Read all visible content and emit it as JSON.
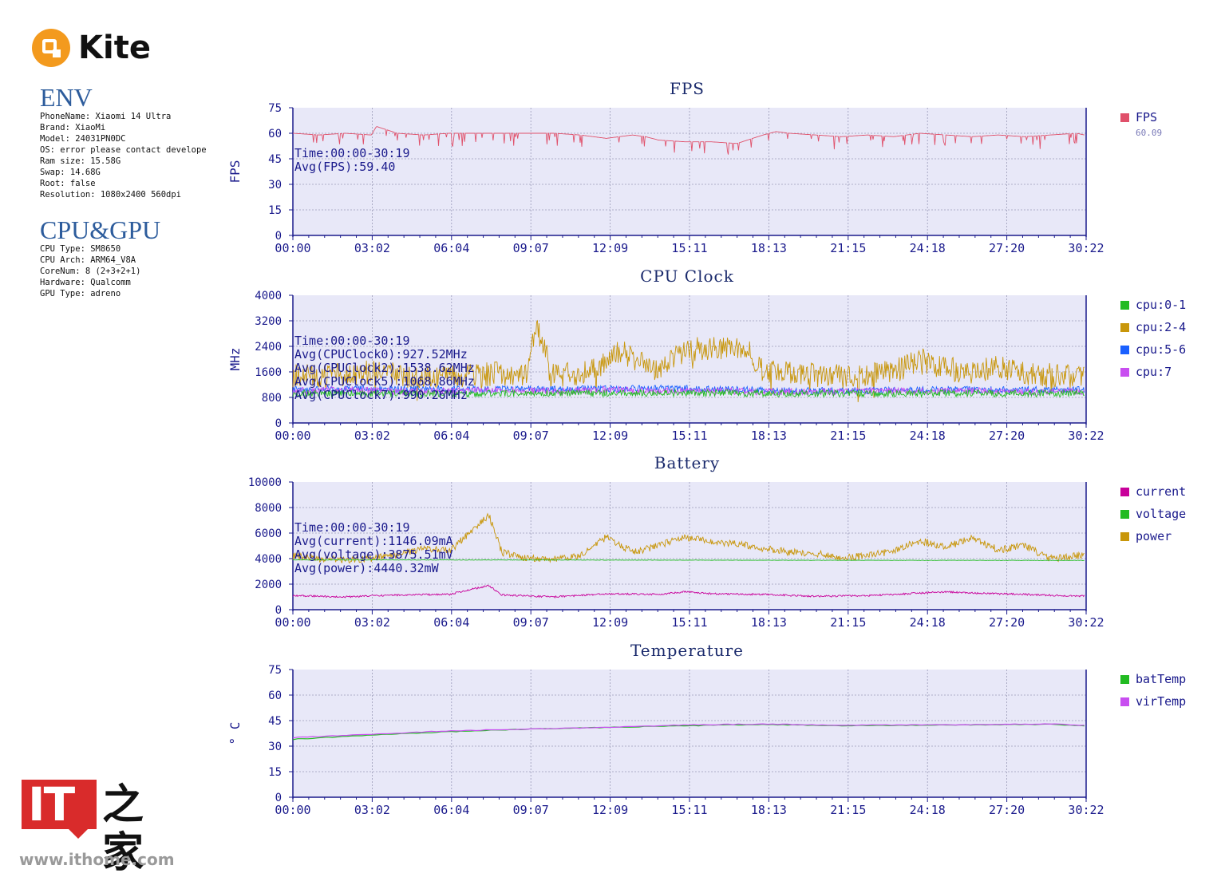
{
  "brand": {
    "name": "Kite",
    "logo_icon": "kite-logo-icon"
  },
  "env": {
    "title": "ENV",
    "lines": [
      "PhoneName: Xiaomi 14 Ultra",
      "Brand: XiaoMi",
      "Model: 24031PN0DC",
      "OS: error please contact develope",
      "Ram size: 15.58G",
      "Swap: 14.68G",
      "Root: false",
      "Resolution: 1080x2400 560dpi"
    ]
  },
  "cpu_gpu": {
    "title": "CPU&GPU",
    "lines": [
      "CPU Type: SM8650",
      "CPU Arch: ARM64_V8A",
      "CoreNum: 8 (2+3+2+1)",
      "Hardware: Qualcomm",
      "GPU Type: adreno"
    ]
  },
  "watermark": {
    "logo": "IT",
    "name": "之家",
    "url": "www.ithome.com"
  },
  "colors": {
    "plot_bg": "#e8e8f8",
    "axis": "#1a1a8c",
    "title": "#1a2a6c",
    "fps": "#e0506a",
    "cpu0": "#22bb22",
    "cpu2": "#c8960a",
    "cpu5": "#1a60ff",
    "cpu7": "#c84ef0",
    "current": "#c8009a",
    "voltage": "#22bb22",
    "power": "#c8960a",
    "batTemp": "#22bb22",
    "virTemp": "#c84ef0"
  },
  "chart_data": [
    {
      "type": "line",
      "title": "FPS",
      "ylabel": "FPS",
      "ylim": [
        0,
        75
      ],
      "yticks": [
        "75",
        "60",
        "45",
        "30",
        "15",
        "0"
      ],
      "xticks": [
        "00:00",
        "03:02",
        "06:04",
        "09:07",
        "12:09",
        "15:11",
        "18:13",
        "21:15",
        "24:18",
        "27:20",
        "30:22"
      ],
      "annotations": [
        "Time:00:00-30:19",
        "Avg(FPS):59.40"
      ],
      "legend": [
        {
          "name": "FPS",
          "color": "#e0506a",
          "sub": "60.09"
        }
      ],
      "series": [
        {
          "name": "FPS",
          "color": "#e0506a",
          "x": [
            0,
            1,
            2,
            3,
            3.2,
            4,
            5,
            6,
            7,
            8,
            9,
            10,
            11,
            12,
            13,
            13.5,
            14,
            15,
            16,
            17,
            18,
            18.5,
            19,
            20,
            21,
            22,
            23,
            24,
            25,
            26,
            27,
            28,
            29,
            30,
            30.3
          ],
          "values": [
            60,
            59,
            60,
            59,
            64,
            60,
            59,
            60,
            60,
            60,
            60,
            60,
            59,
            57,
            59,
            58,
            56,
            55,
            55,
            54,
            59,
            61,
            60,
            59,
            58,
            59,
            58,
            60,
            59,
            58,
            59,
            58,
            59,
            60,
            59
          ]
        }
      ]
    },
    {
      "type": "line",
      "title": "CPU Clock",
      "ylabel": "MHz",
      "ylim": [
        0,
        4000
      ],
      "yticks": [
        "4000",
        "3200",
        "2400",
        "1600",
        "800",
        "0"
      ],
      "xticks": [
        "00:00",
        "03:02",
        "06:04",
        "09:07",
        "12:09",
        "15:11",
        "18:13",
        "21:15",
        "24:18",
        "27:20",
        "30:22"
      ],
      "annotations": [
        "Time:00:00-30:19",
        "Avg(CPUClock0):927.52MHz",
        "Avg(CPUClock2):1538.62MHz",
        "Avg(CPUClock5):1068.86MHz",
        "Avg(CPUClock7):990.26MHz"
      ],
      "legend": [
        {
          "name": "cpu:0-1",
          "color": "#22bb22"
        },
        {
          "name": "cpu:2-4",
          "color": "#c8960a"
        },
        {
          "name": "cpu:5-6",
          "color": "#1a60ff"
        },
        {
          "name": "cpu:7",
          "color": "#c84ef0"
        }
      ],
      "series": [
        {
          "name": "cpu:2-4",
          "color": "#c8960a",
          "x": [
            0,
            1,
            2,
            3,
            4,
            5,
            6,
            7,
            8,
            9,
            9.3,
            10,
            11,
            12,
            12.5,
            13,
            14,
            15,
            16,
            17,
            17.5,
            18,
            19,
            20,
            21,
            22,
            23,
            24,
            25,
            26,
            27,
            28,
            29,
            30,
            30.3
          ],
          "values": [
            1500,
            1450,
            1500,
            1600,
            1500,
            1400,
            1450,
            1500,
            1550,
            1500,
            3100,
            1500,
            1550,
            1900,
            2300,
            2000,
            1600,
            2300,
            2350,
            2300,
            2200,
            1600,
            1550,
            1500,
            1450,
            1500,
            1600,
            2000,
            1700,
            1600,
            1800,
            1550,
            1500,
            1450,
            1450
          ]
        },
        {
          "name": "cpu:5-6",
          "color": "#1a60ff",
          "x": [
            0,
            5,
            10,
            15,
            20,
            25,
            30.3
          ],
          "values": [
            1050,
            1060,
            1050,
            1080,
            1000,
            1040,
            1040
          ]
        },
        {
          "name": "cpu:7",
          "color": "#c84ef0",
          "x": [
            0,
            2,
            4,
            6,
            8,
            10,
            12,
            14,
            16,
            18,
            20,
            22,
            24,
            26,
            28,
            30.3
          ],
          "values": [
            1000,
            1050,
            980,
            1010,
            1030,
            990,
            1050,
            1000,
            1000,
            980,
            970,
            990,
            1000,
            1010,
            980,
            990
          ]
        },
        {
          "name": "cpu:0-1",
          "color": "#22bb22",
          "x": [
            0,
            5,
            10,
            15,
            20,
            25,
            30.3
          ],
          "values": [
            930,
            920,
            930,
            940,
            920,
            930,
            920
          ]
        }
      ]
    },
    {
      "type": "line",
      "title": "Battery",
      "ylabel": "",
      "ylim": [
        0,
        10000
      ],
      "yticks": [
        "10000",
        "8000",
        "6000",
        "4000",
        "2000",
        "0"
      ],
      "xticks": [
        "00:00",
        "03:02",
        "06:04",
        "09:07",
        "12:09",
        "15:11",
        "18:13",
        "21:15",
        "24:18",
        "27:20",
        "30:22"
      ],
      "annotations": [
        "Time:00:00-30:19",
        "Avg(current):1146.09mA",
        "Avg(voltage):3875.51mV",
        "Avg(power):4440.32mW"
      ],
      "legend": [
        {
          "name": "current",
          "color": "#c8009a"
        },
        {
          "name": "voltage",
          "color": "#22bb22"
        },
        {
          "name": "power",
          "color": "#c8960a"
        }
      ],
      "series": [
        {
          "name": "power",
          "color": "#c8960a",
          "x": [
            0,
            1,
            2,
            3,
            4,
            5,
            6,
            7.5,
            8,
            9,
            10,
            11,
            12,
            13,
            14,
            15,
            16,
            17,
            18,
            19,
            20,
            21,
            22,
            23,
            24,
            25,
            26,
            27,
            28,
            29,
            30,
            30.3
          ],
          "values": [
            4200,
            4000,
            3900,
            4000,
            4300,
            4800,
            4600,
            7400,
            4500,
            4000,
            4000,
            4200,
            5700,
            4500,
            5000,
            5700,
            5300,
            5200,
            4800,
            4500,
            4400,
            4100,
            4200,
            4600,
            5400,
            4900,
            5600,
            4700,
            5000,
            4000,
            4200,
            4300
          ]
        },
        {
          "name": "voltage",
          "color": "#22bb22",
          "x": [
            0,
            10,
            20,
            30.3
          ],
          "values": [
            3900,
            3890,
            3870,
            3860
          ]
        },
        {
          "name": "current",
          "color": "#c8009a",
          "x": [
            0,
            2,
            4,
            6,
            7.5,
            8,
            10,
            12,
            14,
            15,
            16,
            18,
            20,
            22,
            24,
            25,
            26,
            28,
            30,
            30.3
          ],
          "values": [
            1100,
            1000,
            1150,
            1200,
            1900,
            1150,
            1000,
            1250,
            1200,
            1400,
            1250,
            1200,
            1050,
            1100,
            1300,
            1400,
            1300,
            1200,
            1050,
            1100
          ]
        }
      ]
    },
    {
      "type": "line",
      "title": "Temperature",
      "ylabel": "° C",
      "ylim": [
        0,
        75
      ],
      "yticks": [
        "75",
        "60",
        "45",
        "30",
        "15",
        "0"
      ],
      "xticks": [
        "00:00",
        "03:02",
        "06:04",
        "09:07",
        "12:09",
        "15:11",
        "18:13",
        "21:15",
        "24:18",
        "27:20",
        "30:22"
      ],
      "annotations": [],
      "legend": [
        {
          "name": "batTemp",
          "color": "#22bb22"
        },
        {
          "name": "virTemp",
          "color": "#c84ef0"
        }
      ],
      "series": [
        {
          "name": "batTemp",
          "color": "#22bb22",
          "x": [
            0,
            3,
            6,
            9,
            12,
            15,
            18,
            21,
            24,
            27,
            29,
            30.3
          ],
          "values": [
            34,
            36.5,
            38.5,
            40,
            41,
            42,
            42.7,
            42,
            42.3,
            42.6,
            42.8,
            42
          ]
        },
        {
          "name": "virTemp",
          "color": "#c84ef0",
          "x": [
            0,
            3,
            6,
            9,
            12,
            15,
            18,
            21,
            24,
            27,
            29,
            30.3
          ],
          "values": [
            35,
            37,
            39,
            40,
            41,
            42.5,
            43,
            42.3,
            42.5,
            42.8,
            43,
            42.2
          ]
        }
      ]
    }
  ]
}
